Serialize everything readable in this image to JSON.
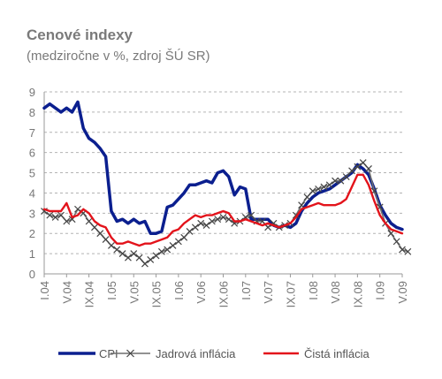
{
  "title": "Cenové indexy",
  "subtitle": "(medziročne v %, zdroj ŠÚ SR)",
  "chart_data": {
    "type": "line",
    "title": "Cenové indexy",
    "subtitle": "(medziročne v %, zdroj ŠÚ SR)",
    "ylim": [
      0,
      9
    ],
    "yticks": [
      0,
      1,
      2,
      3,
      4,
      5,
      6,
      7,
      8,
      9
    ],
    "xlim_months": 64,
    "x_tick_labels": [
      "I.04",
      "V.04",
      "IX.04",
      "I.05",
      "V.05",
      "IX.05",
      "I.06",
      "V.06",
      "IX.06",
      "I.07",
      "V.07",
      "IX.07",
      "I.08",
      "V.08",
      "IX.08",
      "I.09",
      "V.09"
    ],
    "grid": "horizontal dashed",
    "legend_position": "bottom",
    "series": [
      {
        "name": "CPI",
        "color": "#0b1f8f",
        "values": [
          8.2,
          8.4,
          8.2,
          8.0,
          8.2,
          8.0,
          8.5,
          7.2,
          6.7,
          6.5,
          6.2,
          5.8,
          3.1,
          2.6,
          2.7,
          2.5,
          2.7,
          2.5,
          2.6,
          2.0,
          2.0,
          2.1,
          3.3,
          3.4,
          3.7,
          4.0,
          4.4,
          4.4,
          4.5,
          4.6,
          4.5,
          5.0,
          5.1,
          4.8,
          3.9,
          4.3,
          4.2,
          2.7,
          2.7,
          2.7,
          2.7,
          2.4,
          2.3,
          2.4,
          2.3,
          2.5,
          3.1,
          3.5,
          3.8,
          4.0,
          4.1,
          4.2,
          4.4,
          4.6,
          4.8,
          5.0,
          5.4,
          5.2,
          4.9,
          4.2,
          3.4,
          2.9,
          2.5,
          2.3,
          2.2
        ]
      },
      {
        "name": "Jadrová inflácia",
        "color": "#6f6f6f",
        "values": [
          3.1,
          2.9,
          2.8,
          2.9,
          2.6,
          2.7,
          3.2,
          3.0,
          2.6,
          2.3,
          2.0,
          1.7,
          1.4,
          1.2,
          1.0,
          0.8,
          1.0,
          0.8,
          0.5,
          0.7,
          0.9,
          1.1,
          1.2,
          1.4,
          1.6,
          1.8,
          2.1,
          2.3,
          2.5,
          2.4,
          2.6,
          2.7,
          2.8,
          2.7,
          2.5,
          2.6,
          2.8,
          2.9,
          2.6,
          2.6,
          2.3,
          2.5,
          2.3,
          2.4,
          2.5,
          2.9,
          3.4,
          3.8,
          4.1,
          4.2,
          4.3,
          4.4,
          4.6,
          4.6,
          4.8,
          5.1,
          5.3,
          5.5,
          5.2,
          4.1,
          3.3,
          2.5,
          2.0,
          1.6,
          1.2,
          1.1
        ]
      },
      {
        "name": "Čistá inflácia",
        "color": "#e3131b",
        "values": [
          3.2,
          3.1,
          3.1,
          3.1,
          3.5,
          2.8,
          2.9,
          3.2,
          3.0,
          2.6,
          2.4,
          2.3,
          1.8,
          1.5,
          1.5,
          1.6,
          1.5,
          1.4,
          1.5,
          1.5,
          1.6,
          1.7,
          1.8,
          2.1,
          2.2,
          2.5,
          2.7,
          2.9,
          2.8,
          2.9,
          2.9,
          3.0,
          3.1,
          3.0,
          2.6,
          2.6,
          2.7,
          2.6,
          2.5,
          2.4,
          2.5,
          2.4,
          2.3,
          2.4,
          2.5,
          2.8,
          3.2,
          3.3,
          3.4,
          3.5,
          3.4,
          3.4,
          3.4,
          3.5,
          3.7,
          4.3,
          4.9,
          4.9,
          4.4,
          3.6,
          2.9,
          2.5,
          2.2,
          2.1,
          2.0
        ]
      }
    ]
  }
}
